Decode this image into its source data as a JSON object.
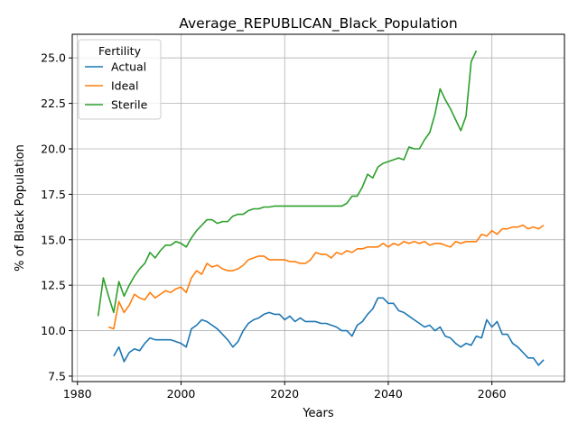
{
  "chart_data": {
    "type": "line",
    "title": "Average_REPUBLICAN_Black_Population",
    "xlabel": "Years",
    "ylabel": "% of Black Population",
    "xlim": [
      1979,
      2074
    ],
    "ylim": [
      7.2,
      26.3
    ],
    "xticks": [
      1980,
      2000,
      2020,
      2040,
      2060
    ],
    "xtick_labels": [
      "1980",
      "2000",
      "2020",
      "2040",
      "2060"
    ],
    "yticks": [
      7.5,
      10.0,
      12.5,
      15.0,
      17.5,
      20.0,
      22.5,
      25.0
    ],
    "ytick_labels": [
      "7.5",
      "10.0",
      "12.5",
      "15.0",
      "17.5",
      "20.0",
      "22.5",
      "25.0"
    ],
    "grid": true,
    "legend": {
      "title": "Fertility",
      "placement": "top-left"
    },
    "series": [
      {
        "name": "Actual",
        "color": "#1f77b4",
        "x": [
          1987,
          1988,
          1989,
          1990,
          1991,
          1992,
          1993,
          1994,
          1995,
          1996,
          1997,
          1998,
          1999,
          2000,
          2001,
          2002,
          2003,
          2004,
          2005,
          2006,
          2007,
          2008,
          2009,
          2010,
          2011,
          2012,
          2013,
          2014,
          2015,
          2016,
          2017,
          2018,
          2019,
          2020,
          2021,
          2022,
          2023,
          2024,
          2025,
          2026,
          2027,
          2028,
          2029,
          2030,
          2031,
          2032,
          2033,
          2034,
          2035,
          2036,
          2037,
          2038,
          2039,
          2040,
          2041,
          2042,
          2043,
          2044,
          2045,
          2046,
          2047,
          2048,
          2049,
          2050,
          2051,
          2052,
          2053,
          2054,
          2055,
          2056,
          2057,
          2058,
          2059,
          2060,
          2061,
          2062,
          2063,
          2064,
          2065,
          2066,
          2067,
          2068,
          2069,
          2070
        ],
        "y": [
          8.6,
          9.1,
          8.3,
          8.8,
          9.0,
          8.9,
          9.3,
          9.6,
          9.5,
          9.5,
          9.5,
          9.5,
          9.4,
          9.3,
          9.1,
          10.1,
          10.3,
          10.6,
          10.5,
          10.3,
          10.1,
          9.8,
          9.5,
          9.1,
          9.4,
          10.0,
          10.4,
          10.6,
          10.7,
          10.9,
          11.0,
          10.9,
          10.9,
          10.6,
          10.8,
          10.5,
          10.7,
          10.5,
          10.5,
          10.5,
          10.4,
          10.4,
          10.3,
          10.2,
          10.0,
          10.0,
          9.7,
          10.3,
          10.5,
          10.9,
          11.2,
          11.8,
          11.8,
          11.5,
          11.5,
          11.1,
          11.0,
          10.8,
          10.6,
          10.4,
          10.2,
          10.3,
          10.0,
          10.2,
          9.7,
          9.6,
          9.3,
          9.1,
          9.3,
          9.2,
          9.7,
          9.6,
          10.6,
          10.2,
          10.5,
          9.8,
          9.8,
          9.3,
          9.1,
          8.8,
          8.5,
          8.5,
          8.1,
          8.4
        ]
      },
      {
        "name": "Ideal",
        "color": "#ff7f0e",
        "x": [
          1986,
          1987,
          1988,
          1989,
          1990,
          1991,
          1992,
          1993,
          1994,
          1995,
          1996,
          1997,
          1998,
          1999,
          2000,
          2001,
          2002,
          2003,
          2004,
          2005,
          2006,
          2007,
          2008,
          2009,
          2010,
          2011,
          2012,
          2013,
          2014,
          2015,
          2016,
          2017,
          2018,
          2019,
          2020,
          2021,
          2022,
          2023,
          2024,
          2025,
          2026,
          2027,
          2028,
          2029,
          2030,
          2031,
          2032,
          2033,
          2034,
          2035,
          2036,
          2037,
          2038,
          2039,
          2040,
          2041,
          2042,
          2043,
          2044,
          2045,
          2046,
          2047,
          2048,
          2049,
          2050,
          2051,
          2052,
          2053,
          2054,
          2055,
          2056,
          2057,
          2058,
          2059,
          2060,
          2061,
          2062,
          2063,
          2064,
          2065,
          2066,
          2067,
          2068,
          2069,
          2070
        ],
        "y": [
          10.2,
          10.1,
          11.6,
          11.0,
          11.4,
          12.0,
          11.8,
          11.7,
          12.1,
          11.8,
          12.0,
          12.2,
          12.1,
          12.3,
          12.4,
          12.1,
          12.9,
          13.3,
          13.1,
          13.7,
          13.5,
          13.6,
          13.4,
          13.3,
          13.3,
          13.4,
          13.6,
          13.9,
          14.0,
          14.1,
          14.1,
          13.9,
          13.9,
          13.9,
          13.9,
          13.8,
          13.8,
          13.7,
          13.7,
          13.9,
          14.3,
          14.2,
          14.2,
          14.0,
          14.3,
          14.2,
          14.4,
          14.3,
          14.5,
          14.5,
          14.6,
          14.6,
          14.6,
          14.8,
          14.6,
          14.8,
          14.7,
          14.9,
          14.8,
          14.9,
          14.8,
          14.9,
          14.7,
          14.8,
          14.8,
          14.7,
          14.6,
          14.9,
          14.8,
          14.9,
          14.9,
          14.9,
          15.3,
          15.2,
          15.5,
          15.3,
          15.6,
          15.6,
          15.7,
          15.7,
          15.8,
          15.6,
          15.7,
          15.6,
          15.8
        ]
      },
      {
        "name": "Sterile",
        "color": "#2ca02c",
        "x": [
          1984,
          1985,
          1986,
          1987,
          1988,
          1989,
          1990,
          1991,
          1992,
          1993,
          1994,
          1995,
          1996,
          1997,
          1998,
          1999,
          2000,
          2001,
          2002,
          2003,
          2004,
          2005,
          2006,
          2007,
          2008,
          2009,
          2010,
          2011,
          2012,
          2013,
          2014,
          2015,
          2016,
          2017,
          2018,
          2019,
          2020,
          2021,
          2022,
          2023,
          2024,
          2025,
          2026,
          2027,
          2028,
          2029,
          2030,
          2031,
          2032,
          2033,
          2034,
          2035,
          2036,
          2037,
          2038,
          2039,
          2040,
          2041,
          2042,
          2043,
          2044,
          2045,
          2046,
          2047,
          2048,
          2049,
          2050,
          2051,
          2052,
          2053,
          2054,
          2055,
          2056,
          2057
        ],
        "y": [
          10.8,
          12.9,
          11.9,
          11.0,
          12.7,
          11.9,
          12.5,
          13.0,
          13.4,
          13.7,
          14.3,
          14.0,
          14.4,
          14.7,
          14.7,
          14.9,
          14.8,
          14.6,
          15.1,
          15.5,
          15.8,
          16.1,
          16.1,
          15.9,
          16.0,
          16.0,
          16.3,
          16.4,
          16.4,
          16.6,
          16.7,
          16.7,
          16.8,
          16.8,
          16.85,
          16.85,
          16.85,
          16.85,
          16.85,
          16.85,
          16.85,
          16.85,
          16.85,
          16.85,
          16.85,
          16.85,
          16.85,
          16.85,
          17.0,
          17.4,
          17.4,
          17.9,
          18.6,
          18.4,
          19.0,
          19.2,
          19.3,
          19.4,
          19.5,
          19.4,
          20.1,
          20.0,
          20.0,
          20.5,
          20.9,
          21.9,
          23.3,
          22.7,
          22.2,
          21.6,
          21.0,
          21.8,
          24.8,
          25.4
        ]
      }
    ]
  }
}
